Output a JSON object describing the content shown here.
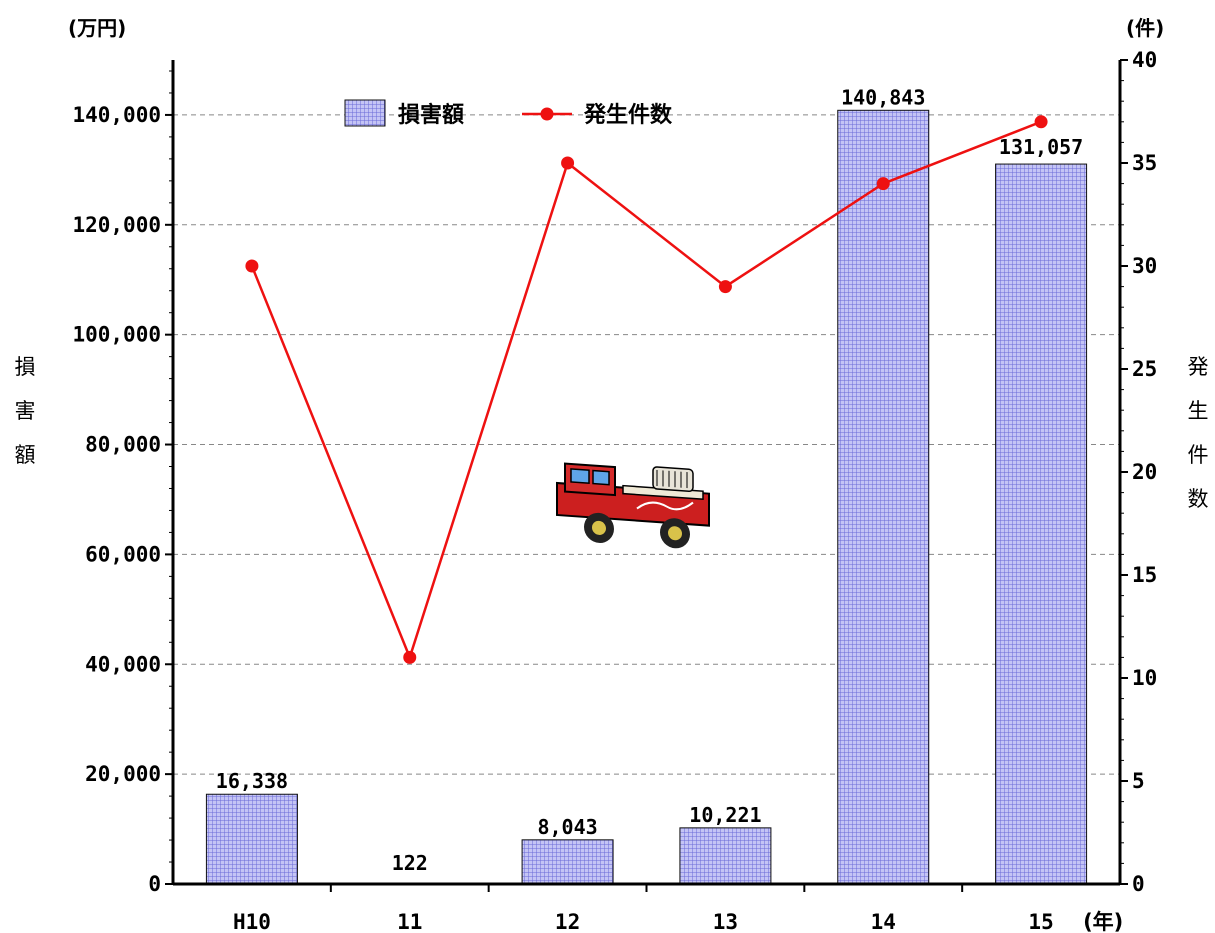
{
  "chart_data": {
    "type": "bar",
    "categories": [
      "H10",
      "11",
      "12",
      "13",
      "14",
      "15"
    ],
    "x_unit": "(年)",
    "series": [
      {
        "name": "損害額",
        "type": "bar",
        "axis": "left",
        "values": [
          16338,
          122,
          8043,
          10221,
          140843,
          131057
        ],
        "labels": [
          "16,338",
          "122",
          "8,043",
          "10,221",
          "140,843",
          "131,057"
        ],
        "color": "#9999ee"
      },
      {
        "name": "発生件数",
        "type": "line",
        "axis": "right",
        "values": [
          30,
          11,
          35,
          29,
          34,
          37
        ],
        "color": "#ee1111"
      }
    ],
    "left_axis": {
      "label": "損害額",
      "unit": "(万円)",
      "range": [
        0,
        150000
      ],
      "ticks": [
        "0",
        "20,000",
        "40,000",
        "60,000",
        "80,000",
        "100,000",
        "120,000",
        "140,000"
      ]
    },
    "right_axis": {
      "label": "発生件数",
      "unit": "(件)",
      "range": [
        0,
        40
      ],
      "ticks": [
        "0",
        "5",
        "10",
        "15",
        "20",
        "25",
        "30",
        "35",
        "40"
      ]
    },
    "grid": true,
    "legend_position": "top-left",
    "decoration": "fire-truck-icon"
  }
}
